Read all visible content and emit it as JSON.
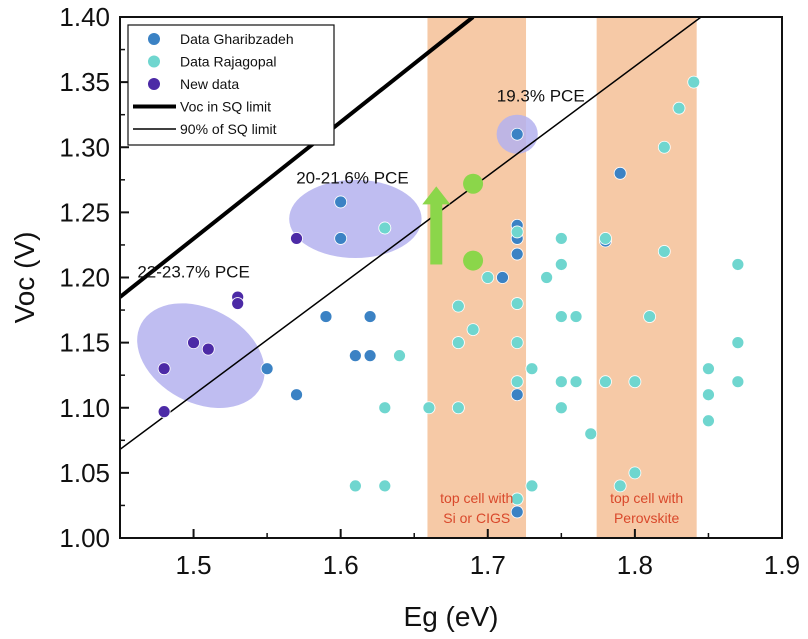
{
  "chart_data": {
    "type": "scatter",
    "xlabel": "Eg (eV)",
    "ylabel": "Voc (V)",
    "xlim": [
      1.45,
      1.9
    ],
    "ylim": [
      1.0,
      1.4
    ],
    "x_ticks": [
      "1.5",
      "1.6",
      "1.7",
      "1.8",
      "1.9"
    ],
    "x_tick_values": [
      1.5,
      1.6,
      1.7,
      1.8,
      1.9
    ],
    "y_ticks": [
      "1.00",
      "1.05",
      "1.10",
      "1.15",
      "1.20",
      "1.25",
      "1.30",
      "1.35",
      "1.40"
    ],
    "y_tick_values": [
      1.0,
      1.05,
      1.1,
      1.15,
      1.2,
      1.25,
      1.3,
      1.35,
      1.4
    ],
    "grid": false,
    "legend_position": "top-left",
    "legend": [
      {
        "label": "Data Gharibzadeh",
        "kind": "marker",
        "color": "#3b82c4"
      },
      {
        "label": "Data Rajagopal",
        "kind": "marker",
        "color": "#6fd6cf"
      },
      {
        "label": "New data",
        "kind": "marker",
        "color": "#4c2aa6"
      },
      {
        "label": "Voc in SQ limit",
        "kind": "line",
        "stroke": 4
      },
      {
        "label": "90% of SQ limit",
        "kind": "line",
        "stroke": 1.5
      }
    ],
    "series": [
      {
        "name": "Data Gharibzadeh",
        "color": "#3b82c4",
        "points": [
          [
            1.55,
            1.13
          ],
          [
            1.57,
            1.11
          ],
          [
            1.59,
            1.17
          ],
          [
            1.6,
            1.258
          ],
          [
            1.6,
            1.23
          ],
          [
            1.61,
            1.14
          ],
          [
            1.62,
            1.17
          ],
          [
            1.62,
            1.14
          ],
          [
            1.63,
            1.238
          ],
          [
            1.64,
            1.14
          ],
          [
            1.66,
            1.1
          ],
          [
            1.68,
            1.15
          ],
          [
            1.68,
            1.1
          ],
          [
            1.71,
            1.2
          ],
          [
            1.72,
            1.31
          ],
          [
            1.72,
            1.24
          ],
          [
            1.72,
            1.23
          ],
          [
            1.72,
            1.218
          ],
          [
            1.72,
            1.11
          ],
          [
            1.72,
            1.02
          ],
          [
            1.73,
            1.13
          ],
          [
            1.75,
            1.23
          ],
          [
            1.75,
            1.21
          ],
          [
            1.75,
            1.17
          ],
          [
            1.76,
            1.17
          ],
          [
            1.78,
            1.228
          ],
          [
            1.79,
            1.28
          ]
        ]
      },
      {
        "name": "Data Rajagopal",
        "color": "#6fd6cf",
        "points": [
          [
            1.61,
            1.04
          ],
          [
            1.63,
            1.04
          ],
          [
            1.63,
            1.1
          ],
          [
            1.64,
            1.14
          ],
          [
            1.63,
            1.238
          ],
          [
            1.66,
            1.1
          ],
          [
            1.68,
            1.178
          ],
          [
            1.68,
            1.15
          ],
          [
            1.68,
            1.1
          ],
          [
            1.69,
            1.16
          ],
          [
            1.7,
            1.2
          ],
          [
            1.72,
            1.235
          ],
          [
            1.72,
            1.18
          ],
          [
            1.72,
            1.15
          ],
          [
            1.72,
            1.12
          ],
          [
            1.72,
            1.03
          ],
          [
            1.73,
            1.04
          ],
          [
            1.73,
            1.13
          ],
          [
            1.74,
            1.2
          ],
          [
            1.75,
            1.23
          ],
          [
            1.75,
            1.21
          ],
          [
            1.75,
            1.17
          ],
          [
            1.75,
            1.12
          ],
          [
            1.75,
            1.1
          ],
          [
            1.76,
            1.17
          ],
          [
            1.76,
            1.12
          ],
          [
            1.77,
            1.08
          ],
          [
            1.78,
            1.23
          ],
          [
            1.78,
            1.12
          ],
          [
            1.79,
            1.04
          ],
          [
            1.8,
            1.12
          ],
          [
            1.8,
            1.05
          ],
          [
            1.81,
            1.17
          ],
          [
            1.82,
            1.3
          ],
          [
            1.82,
            1.22
          ],
          [
            1.83,
            1.33
          ],
          [
            1.84,
            1.35
          ],
          [
            1.85,
            1.13
          ],
          [
            1.85,
            1.11
          ],
          [
            1.85,
            1.09
          ],
          [
            1.87,
            1.21
          ],
          [
            1.87,
            1.15
          ],
          [
            1.87,
            1.12
          ]
        ]
      },
      {
        "name": "New data",
        "color": "#4c2aa6",
        "points": [
          [
            1.48,
            1.13
          ],
          [
            1.48,
            1.097
          ],
          [
            1.5,
            1.15
          ],
          [
            1.51,
            1.145
          ],
          [
            1.53,
            1.185
          ],
          [
            1.53,
            1.18
          ],
          [
            1.57,
            1.23
          ]
        ]
      }
    ],
    "lines": [
      {
        "name": "Voc in SQ limit",
        "x": [
          1.45,
          1.69
        ],
        "y": [
          1.185,
          1.4
        ],
        "stroke": 4
      },
      {
        "name": "90% of SQ limit",
        "x": [
          1.45,
          1.845
        ],
        "y": [
          1.068,
          1.4
        ],
        "stroke": 1.5
      }
    ],
    "bands": [
      {
        "x0": 1.659,
        "x1": 1.726,
        "color": "#f6c9a6",
        "label": [
          "top cell with",
          "Si or CIGS"
        ]
      },
      {
        "x0": 1.774,
        "x1": 1.842,
        "color": "#f6c9a6",
        "label": [
          "top cell with",
          "Perovskite"
        ]
      }
    ],
    "band_label_color": "#d9482b",
    "ellipses": [
      {
        "cx": 1.505,
        "cy": 1.14,
        "rx": 0.032,
        "ry": 0.052,
        "rotate": -62
      },
      {
        "cx": 1.61,
        "cy": 1.245,
        "rx": 0.045,
        "ry": 0.03,
        "rotate": 0
      },
      {
        "cx": 1.72,
        "cy": 1.31,
        "rx": 0.014,
        "ry": 0.015,
        "rotate": 0
      }
    ],
    "ellipse_color": "#b4b2ee",
    "annotations": [
      {
        "text": "19.3% PCE",
        "x": 1.736,
        "y": 1.335
      },
      {
        "text": "20-21.6% PCE",
        "x": 1.608,
        "y": 1.272
      },
      {
        "text": "22-23.7% PCE",
        "x": 1.5,
        "y": 1.2
      }
    ],
    "arrow": {
      "x": 1.665,
      "y_from": 1.21,
      "y_to": 1.27,
      "color": "#8bd64a"
    },
    "green_dots": [
      [
        1.69,
        1.272
      ],
      [
        1.69,
        1.213
      ]
    ],
    "green_color": "#8bd64a"
  }
}
